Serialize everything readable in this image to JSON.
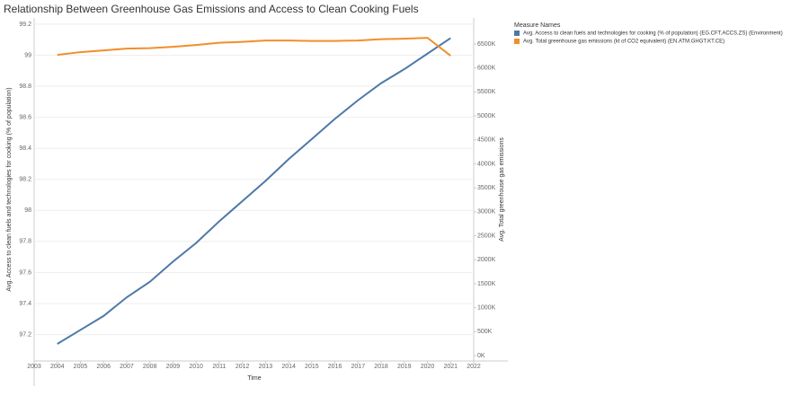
{
  "chart_data": {
    "type": "line",
    "title": "Relationship Between Greenhouse Gas Emissions and Access to Clean Cooking Fuels",
    "x_label": "Time",
    "y_label": "Avg. Access to clean fuels and technologies for cooking (% of population)",
    "y2_label": "Avg. Total greenhouse gas emissions",
    "legend_title": "Measure Names",
    "legend_position": "right",
    "grid": true,
    "x": [
      2004,
      2005,
      2006,
      2007,
      2008,
      2009,
      2010,
      2011,
      2012,
      2013,
      2014,
      2015,
      2016,
      2017,
      2018,
      2019,
      2020,
      2021
    ],
    "xlim": [
      2003,
      2022
    ],
    "xticks": [
      2003,
      2004,
      2005,
      2006,
      2007,
      2008,
      2009,
      2010,
      2011,
      2012,
      2013,
      2014,
      2015,
      2016,
      2017,
      2018,
      2019,
      2020,
      2021,
      2022
    ],
    "ylim": [
      97.03,
      99.24
    ],
    "yticks": [
      97.2,
      97.4,
      97.6,
      97.8,
      98.0,
      98.2,
      98.4,
      98.6,
      98.8,
      99.0,
      99.2
    ],
    "y2lim": [
      -112000,
      7043000
    ],
    "y2ticks": [
      {
        "value": 0,
        "label": "0K"
      },
      {
        "value": 500000,
        "label": "500K"
      },
      {
        "value": 1000000,
        "label": "1000K"
      },
      {
        "value": 1500000,
        "label": "1500K"
      },
      {
        "value": 2000000,
        "label": "2000K"
      },
      {
        "value": 2500000,
        "label": "2500K"
      },
      {
        "value": 3000000,
        "label": "3000K"
      },
      {
        "value": 3500000,
        "label": "3500K"
      },
      {
        "value": 4000000,
        "label": "4000K"
      },
      {
        "value": 4500000,
        "label": "4500K"
      },
      {
        "value": 5000000,
        "label": "5000K"
      },
      {
        "value": 5500000,
        "label": "5500K"
      },
      {
        "value": 6000000,
        "label": "6000K"
      },
      {
        "value": 6500000,
        "label": "6500K"
      }
    ],
    "series": [
      {
        "name": "Avg. Access to clean fuels and technologies for cooking (% of population) (EG.CFT.ACCS.ZS) (Environment)",
        "color": "#4e79a7",
        "values": [
          97.14,
          97.23,
          97.32,
          97.44,
          97.54,
          97.67,
          97.79,
          97.93,
          98.06,
          98.19,
          98.33,
          98.46,
          98.59,
          98.71,
          98.82,
          98.91,
          99.01,
          99.11
        ]
      },
      {
        "name": "Avg. Total greenhouse gas emissions (kt of CO2 equivalent) (EN.ATM.GHGT.KT.CE)",
        "color": "#f28e2b",
        "axis": "y2",
        "values": [
          6273000,
          6330000,
          6367000,
          6404000,
          6414000,
          6442000,
          6479000,
          6526000,
          6545000,
          6573000,
          6573000,
          6564000,
          6564000,
          6573000,
          6601000,
          6610000,
          6629000,
          6255000
        ]
      }
    ]
  }
}
